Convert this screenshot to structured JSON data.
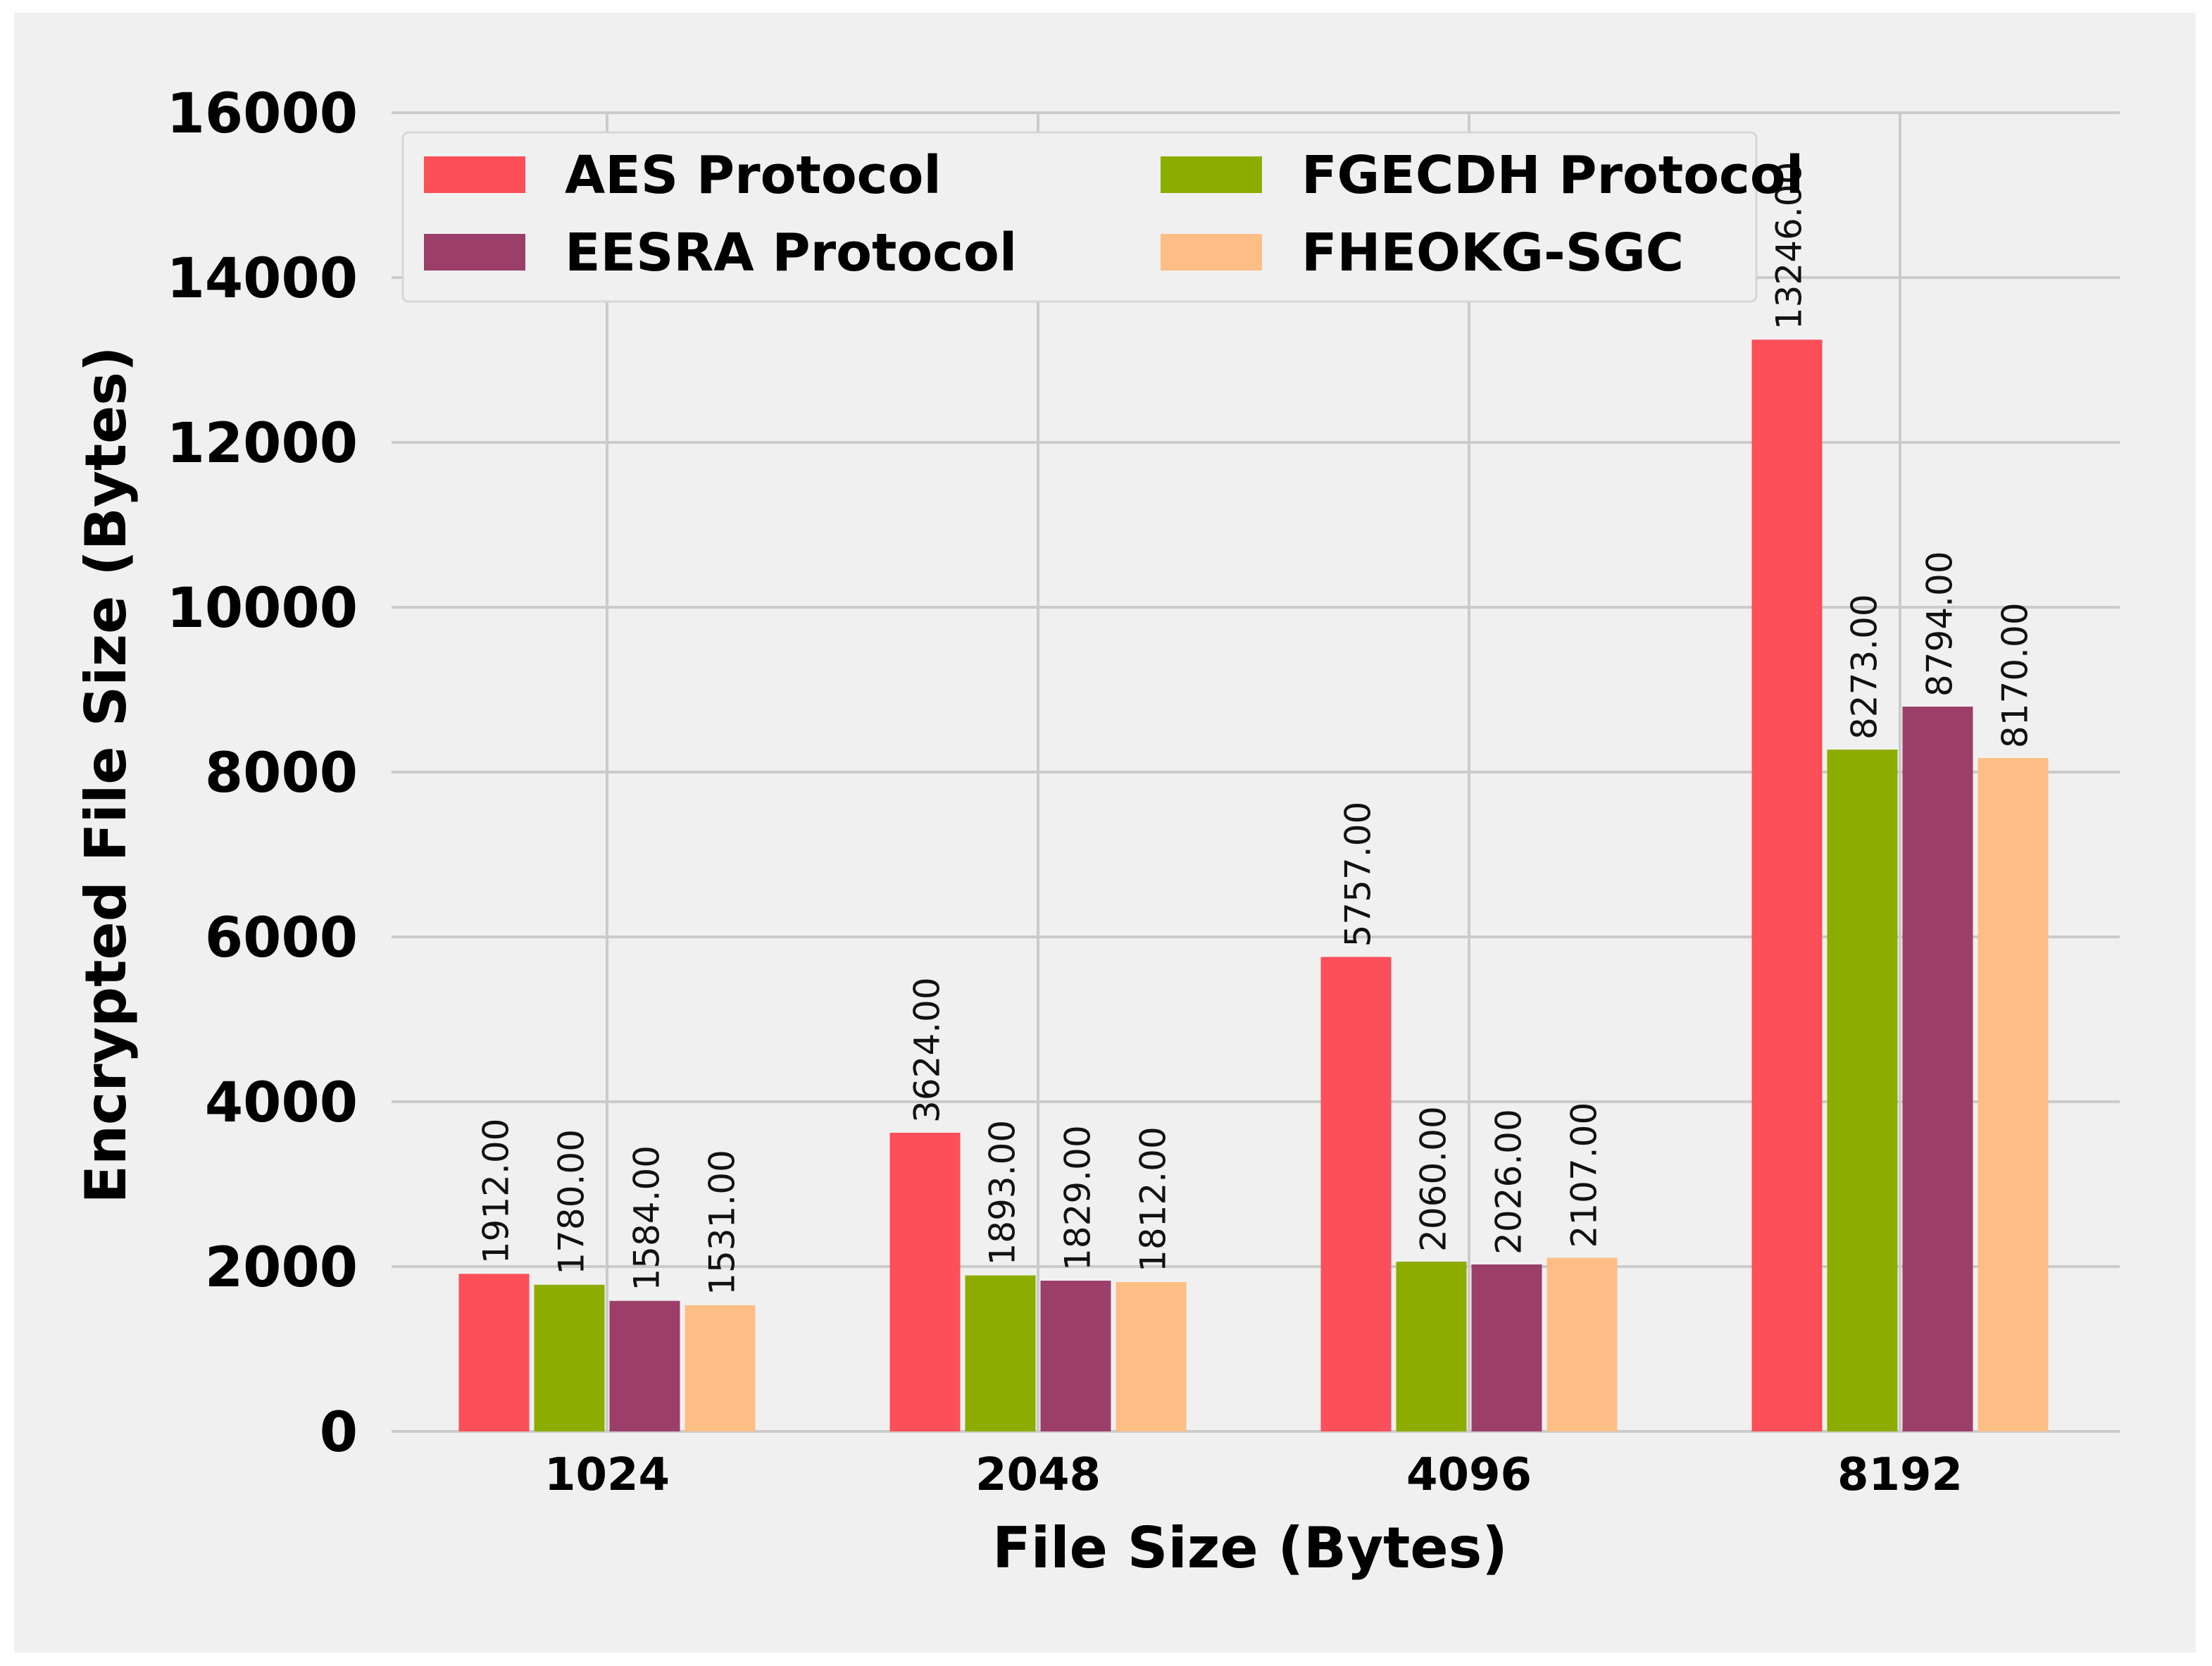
{
  "chart_data": {
    "type": "bar",
    "title": "",
    "xlabel": "File Size (Bytes)",
    "ylabel": "Encrypted File Size (Bytes)",
    "categories": [
      "1024",
      "2048",
      "4096",
      "8192"
    ],
    "ylim": [
      0,
      16000
    ],
    "yticks": [
      0,
      2000,
      4000,
      6000,
      8000,
      10000,
      12000,
      14000,
      16000
    ],
    "grid": true,
    "legend_position": "top-left",
    "series": [
      {
        "name": "AES Protocol",
        "color": "#fc4f59",
        "values": [
          1912,
          3624,
          5757,
          13246
        ],
        "labels": [
          "1912.00",
          "3624.00",
          "5757.00",
          "13246.00"
        ]
      },
      {
        "name": "FGECDH Protocol",
        "color": "#8cad00",
        "values": [
          1780,
          1893,
          2060,
          8273
        ],
        "labels": [
          "1780.00",
          "1893.00",
          "2060.00",
          "8273.00"
        ]
      },
      {
        "name": "EESRA Protocol",
        "color": "#9b3f6a",
        "values": [
          1584,
          1829,
          2026,
          8794
        ],
        "labels": [
          "1584.00",
          "1829.00",
          "2026.00",
          "8794.00"
        ]
      },
      {
        "name": "FHEOKG-SGC",
        "color": "#fdbe85",
        "values": [
          1531,
          1812,
          2107,
          8170
        ],
        "labels": [
          "1531.00",
          "1812.00",
          "2107.00",
          "8170.00"
        ]
      }
    ]
  }
}
